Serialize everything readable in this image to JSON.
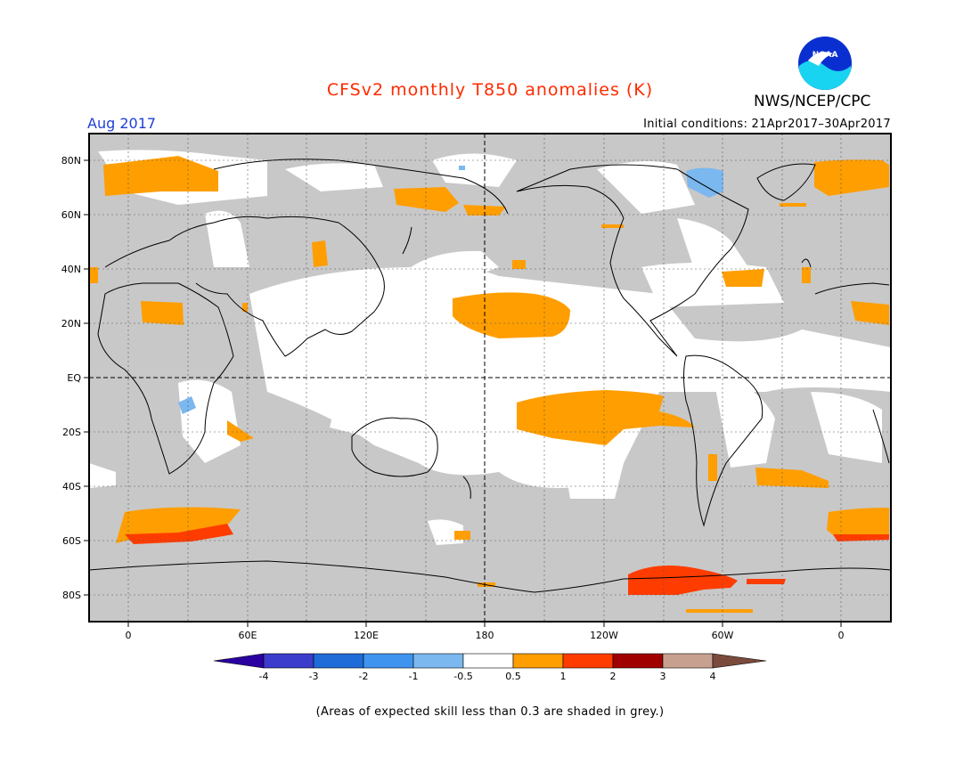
{
  "header": {
    "title": "CFSv2 monthly T850 anomalies (K)",
    "agency": "NWS/NCEP/CPC",
    "logo_text": "NOAA",
    "month": "Aug 2017",
    "initial_conditions": "Initial conditions: 21Apr2017–30Apr2017"
  },
  "map": {
    "lat_labels": [
      "80N",
      "60N",
      "40N",
      "20N",
      "EQ",
      "20S",
      "40S",
      "60S",
      "80S"
    ],
    "lon_labels": [
      "0",
      "60E",
      "120E",
      "180",
      "120W",
      "60W",
      "0"
    ],
    "colors": {
      "grey_low_skill": "#c8c8c8",
      "ocean_white": "#ffffff",
      "orange_0_5_to_1": "#ff9e00",
      "red_1_to_2": "#ff3c00",
      "light_blue_m1_to_m0_5": "#7ab8ef"
    }
  },
  "colorbar": {
    "ticks": [
      "-4",
      "-3",
      "-2",
      "-1",
      "-0.5",
      "0.5",
      "1",
      "2",
      "3",
      "4"
    ],
    "colors": [
      "#2a00a0",
      "#3c3ccc",
      "#1f6bd8",
      "#3f94ef",
      "#7ab8ef",
      "#ffffff",
      "#ff9e00",
      "#ff3c00",
      "#a00000",
      "#c8a090",
      "#7a4a3c"
    ]
  },
  "footnote": "(Areas of expected skill less than 0.3 are shaded in grey.)"
}
